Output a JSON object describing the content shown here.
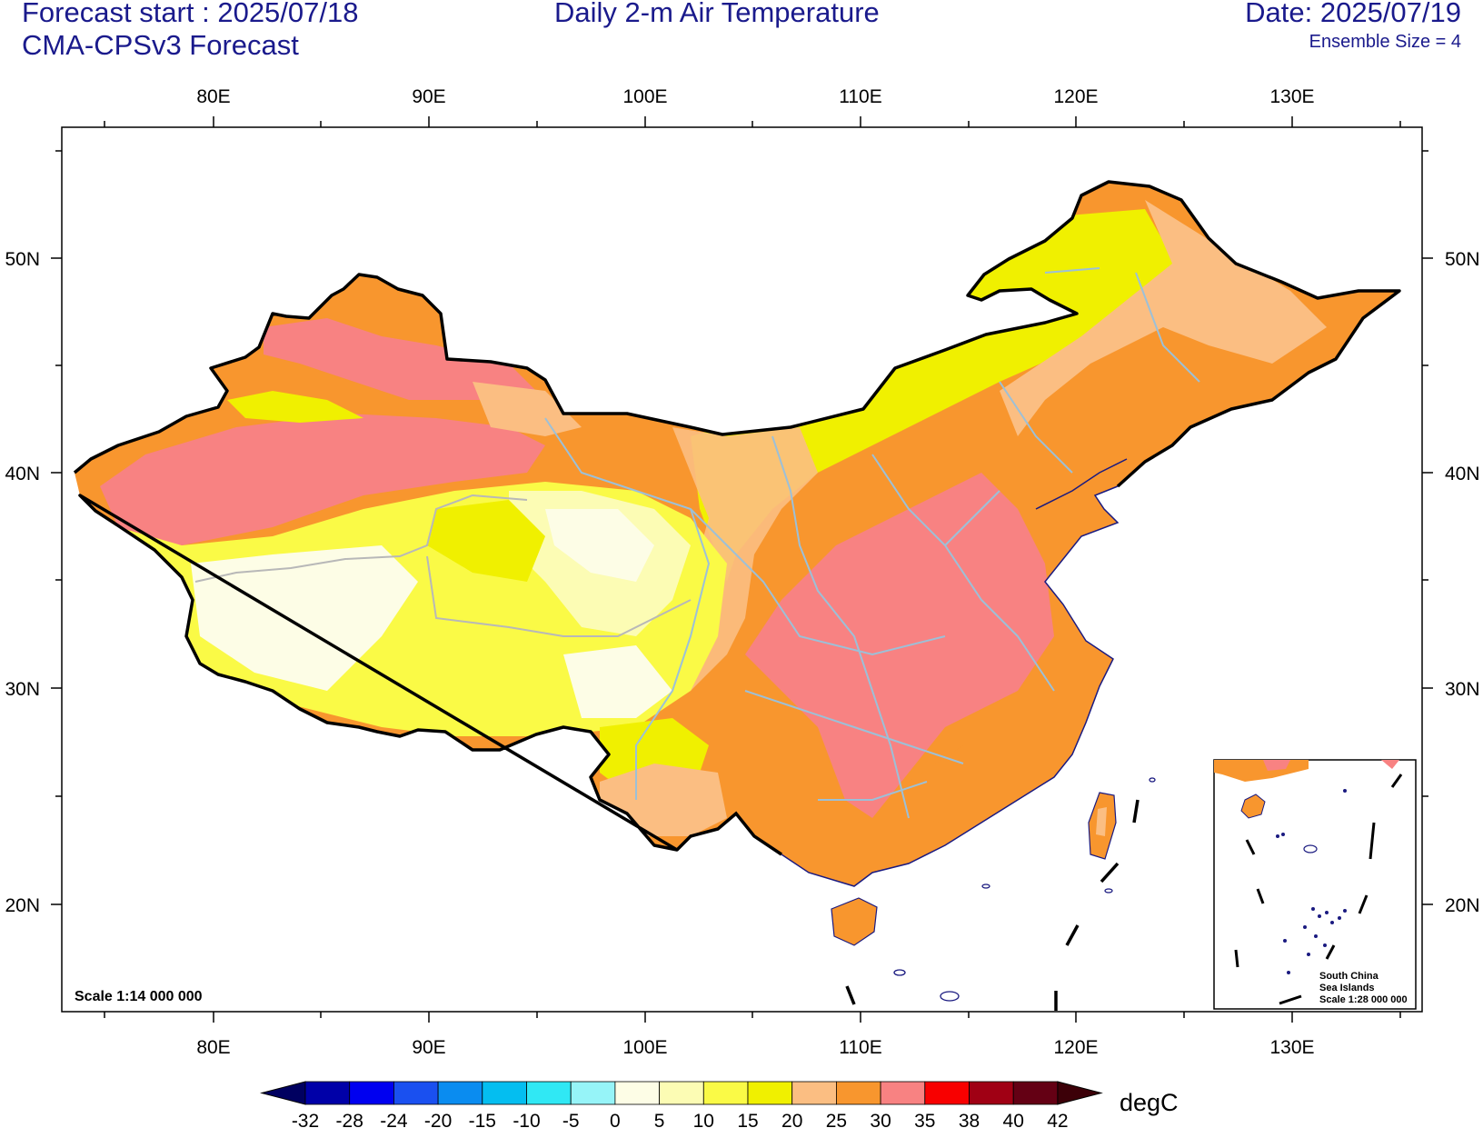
{
  "header": {
    "forecast_start": "Forecast start : 2025/07/18",
    "model": "CMA-CPSv3 Forecast",
    "title": "Daily 2-m Air Temperature",
    "date": "Date: 2025/07/19",
    "ensemble": "Ensemble Size = 4"
  },
  "map": {
    "lon_ticks": [
      "80E",
      "90E",
      "100E",
      "110E",
      "120E",
      "130E"
    ],
    "lat_ticks": [
      "50N",
      "40N",
      "30N",
      "20N"
    ],
    "scale_main": "Scale 1:14 000 000",
    "inset_title_1": "South China",
    "inset_title_2": "Sea Islands",
    "inset_scale": "Scale 1:28 000 000",
    "projection_extent": {
      "lon": [
        73,
        136
      ],
      "lat": [
        15,
        56
      ]
    }
  },
  "colorbar": {
    "units": "degC",
    "labels": [
      "-32",
      "-28",
      "-24",
      "-20",
      "-15",
      "-10",
      "-5",
      "0",
      "5",
      "10",
      "15",
      "20",
      "25",
      "30",
      "35",
      "38",
      "40",
      "42"
    ],
    "colors": [
      "#000060",
      "#0000a8",
      "#0000f0",
      "#1a50f0",
      "#0a8cf0",
      "#04bef0",
      "#30e8f4",
      "#96f4f8",
      "#fdfde6",
      "#fcfcb4",
      "#fafa46",
      "#f0f000",
      "#fbbe82",
      "#f8962e",
      "#f88282",
      "#f80000",
      "#a00014",
      "#640014",
      "#3c0008"
    ]
  }
}
